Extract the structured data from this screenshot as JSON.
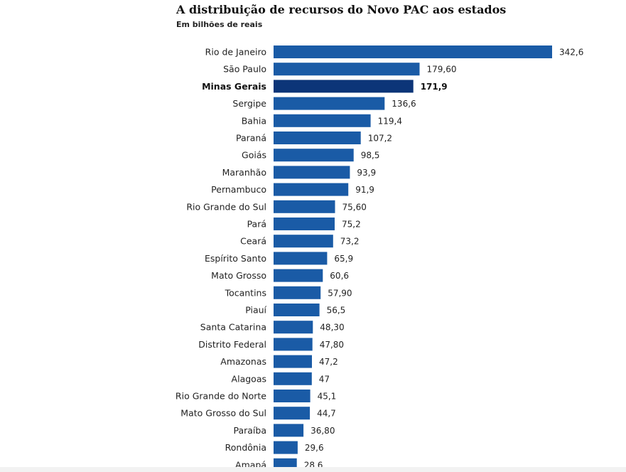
{
  "chart_data": {
    "type": "bar",
    "orientation": "horizontal",
    "title": "A distribuição de recursos do Novo PAC aos estados",
    "subtitle": "Em bilhões de reais",
    "highlight": "Minas Gerais",
    "colors": {
      "bar": "#1a5ba6",
      "highlight": "#0c3578"
    },
    "categories": [
      "Rio de Janeiro",
      "São Paulo",
      "Minas Gerais",
      "Sergipe",
      "Bahia",
      "Paraná",
      "Goiás",
      "Maranhão",
      "Pernambuco",
      "Rio Grande do Sul",
      "Pará",
      "Ceará",
      "Espírito Santo",
      "Mato Grosso",
      "Tocantins",
      "Piauí",
      "Santa Catarina",
      "Distrito Federal",
      "Amazonas",
      "Alagoas",
      "Rio Grande do Norte",
      "Mato Grosso do Sul",
      "Paraíba",
      "Rondônia",
      "Amapá"
    ],
    "values": [
      342.6,
      179.6,
      171.9,
      136.6,
      119.4,
      107.2,
      98.5,
      93.9,
      91.9,
      75.6,
      75.2,
      73.2,
      65.9,
      60.6,
      57.9,
      56.5,
      48.3,
      47.8,
      47.2,
      47,
      45.1,
      44.7,
      36.8,
      29.6,
      28.6
    ],
    "value_labels": [
      "342,6",
      "179,60",
      "171,9",
      "136,6",
      "119,4",
      "107,2",
      "98,5",
      "93,9",
      "91,9",
      "75,60",
      "75,2",
      "73,2",
      "65,9",
      "60,6",
      "57,90",
      "56,5",
      "48,30",
      "47,80",
      "47,2",
      "47",
      "45,1",
      "44,7",
      "36,80",
      "29,6",
      "28,6"
    ]
  }
}
